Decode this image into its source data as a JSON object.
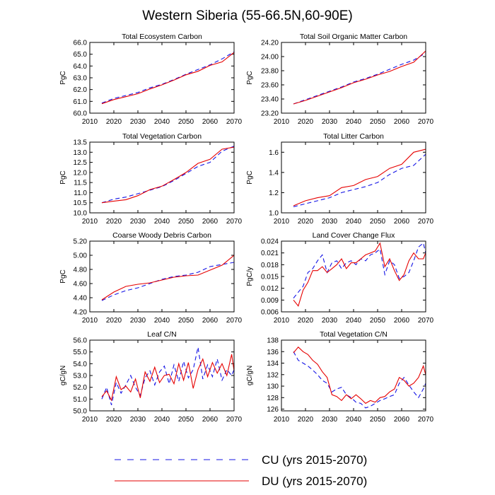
{
  "title": "Western Siberia (55-66.5N,60-90E)",
  "colors": {
    "CU": "#1414e6",
    "DU": "#e60000"
  },
  "legend": [
    {
      "key": "CU",
      "label": "CU (yrs 2015-2070)",
      "style": "dashed"
    },
    {
      "key": "DU",
      "label": "DU (yrs 2015-2070)",
      "style": "solid"
    }
  ],
  "chart_data": [
    {
      "type": "line",
      "title": "Total Ecosystem Carbon",
      "xlabel": "",
      "ylabel": "PgC",
      "xlim": [
        2010,
        2070
      ],
      "xticks": [
        2010,
        2020,
        2030,
        2040,
        2050,
        2060,
        2070
      ],
      "ylim": [
        60.0,
        66.0
      ],
      "yticks": [
        "60.0",
        "61.0",
        "62.0",
        "63.0",
        "64.0",
        "65.0",
        "66.0"
      ],
      "x": [
        2015,
        2020,
        2025,
        2030,
        2035,
        2040,
        2045,
        2050,
        2055,
        2060,
        2065,
        2070
      ],
      "series": [
        {
          "key": "CU",
          "values": [
            60.85,
            61.25,
            61.5,
            61.75,
            62.15,
            62.45,
            62.85,
            63.3,
            63.7,
            64.1,
            64.6,
            65.2
          ]
        },
        {
          "key": "DU",
          "values": [
            60.8,
            61.15,
            61.4,
            61.65,
            62.05,
            62.4,
            62.8,
            63.25,
            63.55,
            64.05,
            64.35,
            65.15
          ]
        }
      ]
    },
    {
      "type": "line",
      "title": "Total Soil Organic Matter Carbon",
      "xlabel": "",
      "ylabel": "PgC",
      "xlim": [
        2010,
        2070
      ],
      "xticks": [
        2010,
        2020,
        2030,
        2040,
        2050,
        2060,
        2070
      ],
      "ylim": [
        23.2,
        24.2
      ],
      "yticks": [
        "23.20",
        "23.40",
        "23.60",
        "23.80",
        "24.00",
        "24.20"
      ],
      "x": [
        2015,
        2020,
        2025,
        2030,
        2035,
        2040,
        2045,
        2050,
        2055,
        2060,
        2065,
        2070
      ],
      "series": [
        {
          "key": "CU",
          "values": [
            23.33,
            23.39,
            23.45,
            23.51,
            23.57,
            23.64,
            23.69,
            23.75,
            23.82,
            23.89,
            23.95,
            24.05
          ]
        },
        {
          "key": "DU",
          "values": [
            23.33,
            23.38,
            23.44,
            23.5,
            23.56,
            23.63,
            23.68,
            23.74,
            23.79,
            23.86,
            23.92,
            24.08
          ]
        }
      ]
    },
    {
      "type": "line",
      "title": "Total Vegetation Carbon",
      "xlabel": "",
      "ylabel": "PgC",
      "xlim": [
        2010,
        2070
      ],
      "xticks": [
        2010,
        2020,
        2030,
        2040,
        2050,
        2060,
        2070
      ],
      "ylim": [
        10.0,
        13.5
      ],
      "yticks": [
        "10.0",
        "10.5",
        "11.0",
        "11.5",
        "12.0",
        "12.5",
        "13.0",
        "13.5"
      ],
      "x": [
        2015,
        2020,
        2025,
        2030,
        2035,
        2040,
        2045,
        2050,
        2055,
        2060,
        2065,
        2070
      ],
      "series": [
        {
          "key": "CU",
          "values": [
            10.5,
            10.68,
            10.78,
            10.95,
            11.12,
            11.3,
            11.6,
            11.95,
            12.3,
            12.5,
            13.05,
            13.3
          ]
        },
        {
          "key": "DU",
          "values": [
            10.5,
            10.58,
            10.65,
            10.85,
            11.15,
            11.32,
            11.65,
            12.0,
            12.45,
            12.65,
            13.15,
            13.25
          ]
        }
      ]
    },
    {
      "type": "line",
      "title": "Total Litter Carbon",
      "xlabel": "",
      "ylabel": "PgC",
      "xlim": [
        2010,
        2070
      ],
      "xticks": [
        2010,
        2020,
        2030,
        2040,
        2050,
        2060,
        2070
      ],
      "ylim": [
        1.0,
        1.7
      ],
      "yticks": [
        "1.0",
        "1.2",
        "1.4",
        "1.6"
      ],
      "x": [
        2015,
        2020,
        2025,
        2030,
        2035,
        2040,
        2045,
        2050,
        2055,
        2060,
        2065,
        2070
      ],
      "series": [
        {
          "key": "CU",
          "values": [
            1.06,
            1.09,
            1.12,
            1.15,
            1.2,
            1.23,
            1.26,
            1.3,
            1.38,
            1.44,
            1.47,
            1.58
          ]
        },
        {
          "key": "DU",
          "values": [
            1.07,
            1.12,
            1.15,
            1.17,
            1.25,
            1.27,
            1.33,
            1.36,
            1.44,
            1.48,
            1.6,
            1.63
          ]
        }
      ]
    },
    {
      "type": "line",
      "title": "Coarse Woody Debris Carbon",
      "xlabel": "",
      "ylabel": "PgC",
      "xlim": [
        2010,
        2070
      ],
      "xticks": [
        2010,
        2020,
        2030,
        2040,
        2050,
        2060,
        2070
      ],
      "ylim": [
        4.2,
        5.2
      ],
      "yticks": [
        "4.20",
        "4.40",
        "4.60",
        "4.80",
        "5.00",
        "5.20"
      ],
      "x": [
        2015,
        2020,
        2025,
        2030,
        2035,
        2040,
        2045,
        2050,
        2055,
        2060,
        2065,
        2070
      ],
      "series": [
        {
          "key": "CU",
          "values": [
            4.36,
            4.44,
            4.5,
            4.54,
            4.6,
            4.66,
            4.7,
            4.72,
            4.76,
            4.84,
            4.87,
            4.9
          ]
        },
        {
          "key": "DU",
          "values": [
            4.37,
            4.48,
            4.56,
            4.59,
            4.61,
            4.65,
            4.69,
            4.71,
            4.72,
            4.79,
            4.86,
            5.0
          ]
        }
      ]
    },
    {
      "type": "line",
      "title": "Land Cover Change Flux",
      "xlabel": "",
      "ylabel": "PgC/y",
      "xlim": [
        2010,
        2070
      ],
      "xticks": [
        2010,
        2020,
        2030,
        2040,
        2050,
        2060,
        2070
      ],
      "ylim": [
        0.006,
        0.024
      ],
      "yticks": [
        "0.006",
        "0.009",
        "0.012",
        "0.015",
        "0.018",
        "0.021",
        "0.024"
      ],
      "x": [
        2015,
        2017,
        2019,
        2021,
        2023,
        2025,
        2027,
        2029,
        2031,
        2033,
        2035,
        2037,
        2039,
        2041,
        2043,
        2045,
        2047,
        2049,
        2051,
        2053,
        2055,
        2057,
        2059,
        2061,
        2063,
        2065,
        2067,
        2069,
        2070
      ],
      "series": [
        {
          "key": "CU",
          "values": [
            0.0095,
            0.011,
            0.0125,
            0.016,
            0.017,
            0.019,
            0.0205,
            0.016,
            0.0185,
            0.019,
            0.017,
            0.0185,
            0.019,
            0.018,
            0.0195,
            0.019,
            0.0205,
            0.021,
            0.022,
            0.0155,
            0.019,
            0.018,
            0.0145,
            0.015,
            0.016,
            0.019,
            0.0225,
            0.0235,
            0.021
          ]
        },
        {
          "key": "DU",
          "values": [
            0.009,
            0.0075,
            0.0115,
            0.0135,
            0.0165,
            0.0165,
            0.0175,
            0.016,
            0.017,
            0.018,
            0.0195,
            0.017,
            0.0185,
            0.0185,
            0.0195,
            0.0205,
            0.021,
            0.0215,
            0.0235,
            0.0175,
            0.0195,
            0.0165,
            0.014,
            0.0155,
            0.019,
            0.021,
            0.0195,
            0.0195,
            0.021
          ]
        }
      ]
    },
    {
      "type": "line",
      "title": "Leaf C/N",
      "xlabel": "",
      "ylabel": "gC/gN",
      "xlim": [
        2010,
        2070
      ],
      "xticks": [
        2010,
        2020,
        2030,
        2040,
        2050,
        2060,
        2070
      ],
      "ylim": [
        50.0,
        56.0
      ],
      "yticks": [
        "50.0",
        "51.0",
        "52.0",
        "53.0",
        "54.0",
        "55.0",
        "56.0"
      ],
      "x": [
        2015,
        2017,
        2019,
        2021,
        2023,
        2025,
        2027,
        2029,
        2031,
        2033,
        2035,
        2037,
        2039,
        2041,
        2043,
        2045,
        2047,
        2049,
        2051,
        2053,
        2055,
        2057,
        2059,
        2061,
        2063,
        2065,
        2067,
        2069,
        2070
      ],
      "series": [
        {
          "key": "CU",
          "values": [
            51.0,
            52.0,
            50.5,
            52.4,
            51.5,
            52.2,
            53.0,
            52.0,
            51.3,
            52.8,
            53.4,
            52.2,
            53.3,
            53.8,
            52.3,
            53.9,
            52.5,
            54.2,
            52.8,
            53.5,
            55.4,
            52.7,
            53.9,
            52.9,
            54.4,
            52.6,
            53.5,
            53.0,
            53.5
          ]
        },
        {
          "key": "DU",
          "values": [
            51.2,
            51.7,
            50.9,
            52.9,
            51.8,
            52.1,
            51.6,
            52.7,
            51.1,
            53.3,
            52.5,
            53.7,
            52.4,
            53.0,
            53.1,
            52.3,
            54.0,
            52.6,
            54.1,
            51.9,
            53.5,
            54.4,
            52.9,
            54.1,
            53.2,
            54.0,
            53.0,
            54.8,
            53.4
          ]
        }
      ]
    },
    {
      "type": "line",
      "title": "Total Vegetation C/N",
      "xlabel": "",
      "ylabel": "gC/gN",
      "xlim": [
        2010,
        2070
      ],
      "xticks": [
        2010,
        2020,
        2030,
        2040,
        2050,
        2060,
        2070
      ],
      "ylim": [
        125.7,
        138
      ],
      "yticks": [
        "126",
        "128",
        "130",
        "132",
        "134",
        "136",
        "138"
      ],
      "x": [
        2015,
        2017,
        2019,
        2021,
        2023,
        2025,
        2027,
        2029,
        2031,
        2033,
        2035,
        2037,
        2039,
        2041,
        2043,
        2045,
        2047,
        2049,
        2051,
        2053,
        2055,
        2057,
        2059,
        2061,
        2063,
        2065,
        2067,
        2069,
        2070
      ],
      "series": [
        {
          "key": "CU",
          "values": [
            136.0,
            134.5,
            134.0,
            133.5,
            132.8,
            132.0,
            131.0,
            130.5,
            129.0,
            129.5,
            129.8,
            128.5,
            128.0,
            127.2,
            127.0,
            126.2,
            126.5,
            127.0,
            127.5,
            127.8,
            128.2,
            128.5,
            130.5,
            131.5,
            130.2,
            129.0,
            128.0,
            129.5,
            130.5
          ]
        },
        {
          "key": "DU",
          "values": [
            135.8,
            136.8,
            136.0,
            135.5,
            134.5,
            133.8,
            132.5,
            131.5,
            128.5,
            128.2,
            127.5,
            128.5,
            127.8,
            128.5,
            127.8,
            127.0,
            127.5,
            127.2,
            128.0,
            128.2,
            129.0,
            129.5,
            131.5,
            131.0,
            130.0,
            130.5,
            131.5,
            133.5,
            132.0
          ]
        }
      ]
    }
  ]
}
